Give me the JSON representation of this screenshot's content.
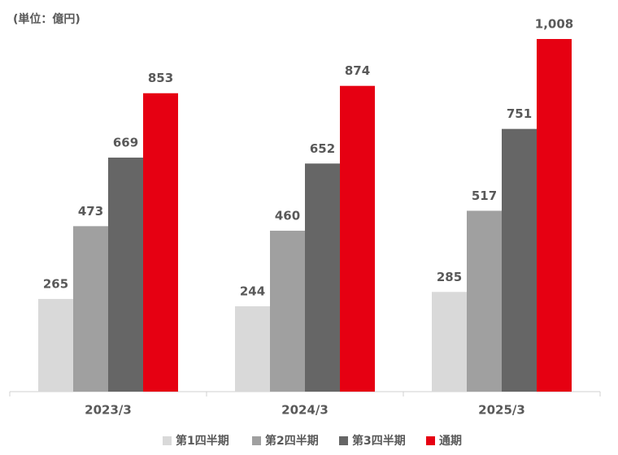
{
  "chart_data": {
    "type": "bar",
    "subtitle": "(単位：億円)",
    "categories": [
      "2023/3",
      "2024/3",
      "2025/3"
    ],
    "series": [
      {
        "name": "第1四半期",
        "color": "#d9d9d9",
        "values": [
          265,
          244,
          285
        ]
      },
      {
        "name": "第2四半期",
        "color": "#a0a0a0",
        "values": [
          473,
          460,
          517
        ]
      },
      {
        "name": "第3四半期",
        "color": "#666666",
        "values": [
          669,
          652,
          751
        ]
      },
      {
        "name": "通期",
        "color": "#e60012",
        "values": [
          853,
          874,
          1008
        ],
        "value_labels": [
          "853",
          "874",
          "1,008"
        ]
      }
    ],
    "legend": "bottom"
  }
}
